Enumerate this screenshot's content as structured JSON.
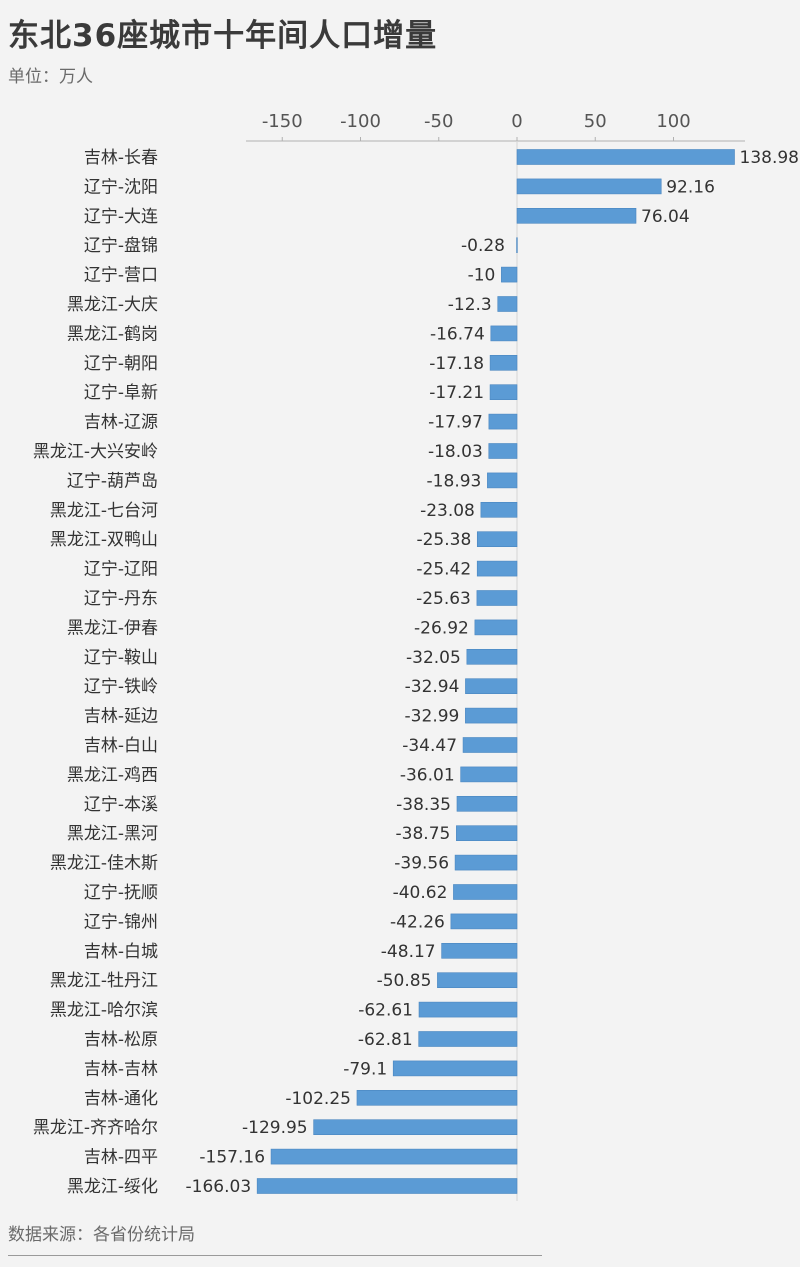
{
  "title": "东北36座城市十年间人口增量",
  "unit": "单位：万人",
  "source": "数据来源：各省份统计局",
  "colors": {
    "bar": "#5b9bd5",
    "bar_edge": "#4a86c0",
    "axis": "#b0b0b0",
    "background": "#f3f3f3"
  },
  "chart_data": {
    "type": "bar",
    "orientation": "horizontal",
    "xlim": [
      -166.03,
      138.98
    ],
    "xticks": [
      -150,
      -100,
      -50,
      0,
      50,
      100
    ],
    "xtick_labels": [
      "-150",
      "-100",
      "-50",
      "0",
      "50",
      "100"
    ],
    "xaxis_position": "top",
    "grid": false,
    "categories": [
      "吉林-长春",
      "辽宁-沈阳",
      "辽宁-大连",
      "辽宁-盘锦",
      "辽宁-营口",
      "黑龙江-大庆",
      "黑龙江-鹤岗",
      "辽宁-朝阳",
      "辽宁-阜新",
      "吉林-辽源",
      "黑龙江-大兴安岭",
      "辽宁-葫芦岛",
      "黑龙江-七台河",
      "黑龙江-双鸭山",
      "辽宁-辽阳",
      "辽宁-丹东",
      "黑龙江-伊春",
      "辽宁-鞍山",
      "辽宁-铁岭",
      "吉林-延边",
      "吉林-白山",
      "黑龙江-鸡西",
      "辽宁-本溪",
      "黑龙江-黑河",
      "黑龙江-佳木斯",
      "辽宁-抚顺",
      "辽宁-锦州",
      "吉林-白城",
      "黑龙江-牡丹江",
      "黑龙江-哈尔滨",
      "吉林-松原",
      "吉林-吉林",
      "吉林-通化",
      "黑龙江-齐齐哈尔",
      "吉林-四平",
      "黑龙江-绥化"
    ],
    "values": [
      138.98,
      92.16,
      76.04,
      -0.28,
      -10,
      -12.3,
      -16.74,
      -17.18,
      -17.21,
      -17.97,
      -18.03,
      -18.93,
      -23.08,
      -25.38,
      -25.42,
      -25.63,
      -26.92,
      -32.05,
      -32.94,
      -32.99,
      -34.47,
      -36.01,
      -38.35,
      -38.75,
      -39.56,
      -40.62,
      -42.26,
      -48.17,
      -50.85,
      -62.61,
      -62.81,
      -79.1,
      -102.25,
      -129.95,
      -157.16,
      -166.03
    ],
    "value_labels": [
      "138.98",
      "92.16",
      "76.04",
      "-0.28",
      "-10",
      "-12.3",
      "-16.74",
      "-17.18",
      "-17.21",
      "-17.97",
      "-18.03",
      "-18.93",
      "-23.08",
      "-25.38",
      "-25.42",
      "-25.63",
      "-26.92",
      "-32.05",
      "-32.94",
      "-32.99",
      "-34.47",
      "-36.01",
      "-38.35",
      "-38.75",
      "-39.56",
      "-40.62",
      "-42.26",
      "-48.17",
      "-50.85",
      "-62.61",
      "-62.81",
      "-79.1",
      "-102.25",
      "-129.95",
      "-157.16",
      "-166.03"
    ]
  }
}
